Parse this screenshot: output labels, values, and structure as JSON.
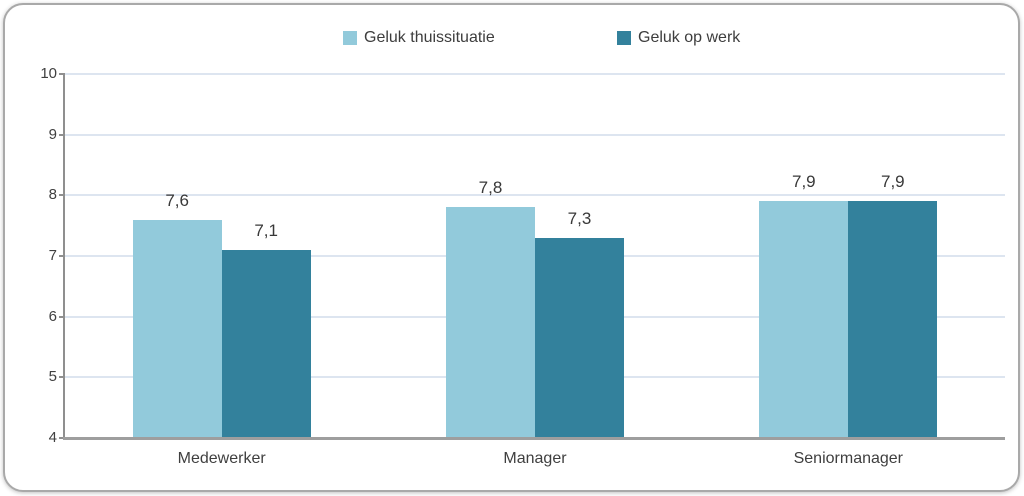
{
  "legend": {
    "items": [
      {
        "label": "Geluk thuissituatie",
        "color": "#92cadb"
      },
      {
        "label": "Geluk op werk",
        "color": "#33819c"
      }
    ]
  },
  "chart_data": {
    "type": "bar",
    "title": "",
    "categories": [
      "Medewerker",
      "Manager",
      "Seniormanager"
    ],
    "series": [
      {
        "name": "Geluk thuissituatie",
        "color": "#92cadb",
        "values": [
          7.6,
          7.8,
          7.9
        ],
        "labels": [
          "7,6",
          "7,8",
          "7,9"
        ]
      },
      {
        "name": "Geluk op werk",
        "color": "#33819c",
        "values": [
          7.1,
          7.3,
          7.9
        ],
        "labels": [
          "7,1",
          "7,3",
          "7,9"
        ]
      }
    ],
    "ylim": [
      4,
      10
    ],
    "yticks": [
      4,
      5,
      6,
      7,
      8,
      9,
      10
    ],
    "grid": true,
    "legend_position": "top",
    "gridline_color": "#dde5f0",
    "axis_color": "#8f8f8f",
    "xlabel": "",
    "ylabel": ""
  }
}
